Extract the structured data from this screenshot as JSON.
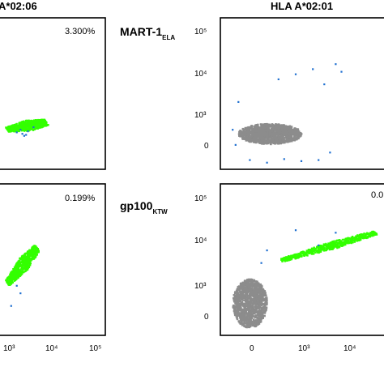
{
  "column_titles": [
    "A*02:06",
    "HLA A*02:01"
  ],
  "row_labels": [
    {
      "main": "MART-1",
      "sub": "ELA"
    },
    {
      "main": "gp100",
      "sub": "KTW"
    }
  ],
  "colors": {
    "positive_events": "#33ff00",
    "negative_events": "#8c8c8c",
    "outlier_events": "#1f6fd0",
    "frame": "#000000"
  },
  "chart_data": [
    {
      "type": "scatter",
      "id": "a0206-mart1",
      "annotation": "3.300%",
      "y_ticks": [],
      "x_ticks": [],
      "series": [
        {
          "color": "green",
          "cloud": {
            "from": [
              -0.15,
              0.3
            ],
            "to": [
              0.9,
              0.45
            ],
            "width": 0.2
          }
        },
        {
          "color": "blue",
          "points": [
            [
              0.1,
              0.25
            ],
            [
              0.25,
              0.22
            ],
            [
              0.35,
              0.2
            ],
            [
              0.4,
              0.27
            ],
            [
              0.2,
              0.3
            ],
            [
              0.55,
              0.35
            ],
            [
              0.3,
              0.18
            ]
          ]
        }
      ]
    },
    {
      "type": "scatter",
      "id": "a0201-mart1",
      "annotation": "",
      "y_ticks": [
        "10⁵",
        "10⁴",
        "10³",
        "0"
      ],
      "x_ticks": [],
      "series": [
        {
          "color": "gray",
          "blob": {
            "center": [
              0.35,
              0.22
            ],
            "radius": [
              0.55,
              0.2
            ]
          }
        },
        {
          "color": "blue",
          "points": [
            [
              0.5,
              1.3
            ],
            [
              0.8,
              1.4
            ],
            [
              1.1,
              1.5
            ],
            [
              1.3,
              1.2
            ],
            [
              1.5,
              1.6
            ],
            [
              1.6,
              1.45
            ],
            [
              -0.2,
              0.85
            ],
            [
              0.0,
              -0.3
            ],
            [
              0.3,
              -0.35
            ],
            [
              0.6,
              -0.28
            ],
            [
              0.9,
              -0.32
            ],
            [
              1.2,
              -0.3
            ],
            [
              1.4,
              -0.15
            ],
            [
              -0.3,
              0.3
            ],
            [
              -0.25,
              0.0
            ]
          ]
        }
      ]
    },
    {
      "type": "scatter",
      "id": "a0206-gp100",
      "annotation": "0.199%",
      "y_ticks": [],
      "x_ticks": [
        "10³",
        "10⁴",
        "10⁵"
      ],
      "series": [
        {
          "color": "green",
          "cloud": {
            "from": [
              -0.15,
              0.55
            ],
            "to": [
              0.65,
              1.25
            ],
            "width": 0.22
          }
        },
        {
          "color": "blue",
          "points": [
            [
              -0.05,
              0.1
            ],
            [
              0.1,
              0.5
            ],
            [
              0.2,
              0.35
            ]
          ]
        }
      ]
    },
    {
      "type": "scatter",
      "id": "a0201-gp100",
      "annotation": "0.0",
      "y_ticks": [
        "10⁵",
        "10⁴",
        "10³",
        "0"
      ],
      "x_ticks": [
        "0",
        "10³",
        "10⁴"
      ],
      "series": [
        {
          "color": "gray",
          "blob": {
            "center": [
              0.0,
              0.15
            ],
            "radius": [
              0.3,
              0.48
            ]
          }
        },
        {
          "color": "green",
          "cloud": {
            "from": [
              0.55,
              1.0
            ],
            "to": [
              2.2,
              1.55
            ],
            "width": 0.12
          }
        },
        {
          "color": "blue",
          "points": [
            [
              0.3,
              1.2
            ],
            [
              0.8,
              1.6
            ],
            [
              1.5,
              1.55
            ],
            [
              1.2,
              1.3
            ],
            [
              0.2,
              0.95
            ]
          ]
        }
      ]
    }
  ]
}
